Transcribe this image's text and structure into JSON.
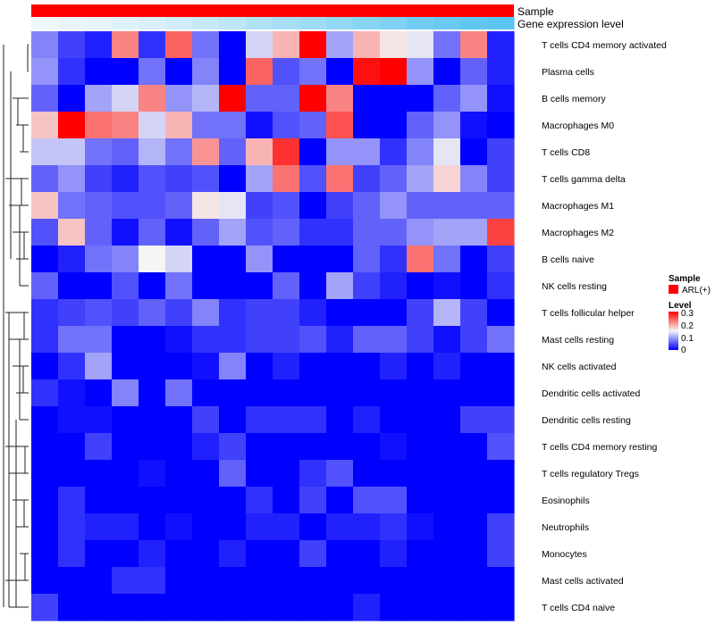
{
  "chart_data": {
    "type": "heatmap",
    "annotation_tracks": [
      {
        "name": "Sample",
        "label": "Sample",
        "color": "#ff0000"
      },
      {
        "name": "Gene expression level",
        "label": "Gene expression level",
        "values": [
          0.02,
          0.05,
          0.08,
          0.12,
          0.16,
          0.22,
          0.28,
          0.34,
          0.42,
          0.48,
          0.54,
          0.62,
          0.68,
          0.74,
          0.82,
          0.88,
          0.94,
          0.99
        ]
      }
    ],
    "rows": [
      "T cells CD4 memory activated",
      "Plasma cells",
      "B cells memory",
      "Macrophages M0",
      "T cells CD8",
      "T cells gamma delta",
      "Macrophages M1",
      "Macrophages M2",
      "B cells naive",
      "NK cells resting",
      "T cells follicular helper",
      "Mast cells resting",
      "NK cells activated",
      "Dendritic cells activated",
      "Dendritic cells resting",
      "T cells CD4 memory resting",
      "T cells regulatory  Tregs",
      "Eosinophils",
      "Neutrophils",
      "Monocytes",
      "Mast cells activated",
      "T cells CD4 naive"
    ],
    "n_columns": 18,
    "values": [
      [
        0.08,
        0.04,
        0.02,
        0.22,
        0.03,
        0.24,
        0.07,
        0.0,
        0.13,
        0.19,
        0.3,
        0.1,
        0.19,
        0.16,
        0.14,
        0.07,
        0.22,
        0.02
      ],
      [
        0.09,
        0.03,
        0.0,
        0.0,
        0.07,
        0.0,
        0.08,
        0.0,
        0.24,
        0.05,
        0.07,
        0.0,
        0.29,
        0.3,
        0.09,
        0.0,
        0.06,
        0.02
      ],
      [
        0.06,
        0.0,
        0.1,
        0.13,
        0.22,
        0.09,
        0.11,
        0.3,
        0.06,
        0.06,
        0.3,
        0.22,
        0.0,
        0.0,
        0.0,
        0.06,
        0.09,
        0.01
      ],
      [
        0.18,
        0.3,
        0.23,
        0.22,
        0.13,
        0.19,
        0.07,
        0.07,
        0.01,
        0.05,
        0.06,
        0.25,
        0.0,
        0.0,
        0.06,
        0.09,
        0.01,
        0.0
      ],
      [
        0.12,
        0.12,
        0.07,
        0.06,
        0.11,
        0.07,
        0.21,
        0.06,
        0.19,
        0.27,
        0.0,
        0.09,
        0.09,
        0.03,
        0.08,
        0.14,
        0.0,
        0.04
      ],
      [
        0.06,
        0.09,
        0.04,
        0.02,
        0.05,
        0.04,
        0.05,
        0.0,
        0.1,
        0.23,
        0.05,
        0.23,
        0.04,
        0.06,
        0.1,
        0.17,
        0.08,
        0.04
      ],
      [
        0.18,
        0.07,
        0.06,
        0.05,
        0.05,
        0.06,
        0.16,
        0.14,
        0.04,
        0.05,
        0.0,
        0.04,
        0.06,
        0.09,
        0.06,
        0.06,
        0.06,
        0.06
      ],
      [
        0.05,
        0.18,
        0.06,
        0.01,
        0.06,
        0.01,
        0.06,
        0.1,
        0.05,
        0.06,
        0.03,
        0.03,
        0.06,
        0.06,
        0.09,
        0.1,
        0.1,
        0.26
      ],
      [
        0.0,
        0.02,
        0.07,
        0.08,
        0.15,
        0.13,
        0.0,
        0.0,
        0.09,
        0.0,
        0.0,
        0.0,
        0.06,
        0.03,
        0.23,
        0.07,
        0.0,
        0.04
      ],
      [
        0.06,
        0.0,
        0.0,
        0.05,
        0.0,
        0.07,
        0.0,
        0.0,
        0.0,
        0.06,
        0.0,
        0.1,
        0.04,
        0.02,
        0.0,
        0.01,
        0.0,
        0.03
      ],
      [
        0.03,
        0.04,
        0.05,
        0.04,
        0.06,
        0.04,
        0.08,
        0.03,
        0.04,
        0.04,
        0.02,
        0.0,
        0.0,
        0.0,
        0.04,
        0.11,
        0.04,
        0.0
      ],
      [
        0.03,
        0.07,
        0.07,
        0.0,
        0.0,
        0.01,
        0.03,
        0.03,
        0.04,
        0.04,
        0.05,
        0.02,
        0.06,
        0.06,
        0.04,
        0.01,
        0.04,
        0.07
      ],
      [
        0.0,
        0.03,
        0.1,
        0.0,
        0.0,
        0.0,
        0.01,
        0.08,
        0.0,
        0.02,
        0.0,
        0.0,
        0.0,
        0.02,
        0.0,
        0.02,
        0.0,
        0.0
      ],
      [
        0.03,
        0.01,
        0.0,
        0.08,
        0.0,
        0.07,
        0.0,
        0.0,
        0.0,
        0.0,
        0.0,
        0.0,
        0.0,
        0.0,
        0.0,
        0.0,
        0.0,
        0.0
      ],
      [
        0.0,
        0.01,
        0.01,
        0.0,
        0.0,
        0.0,
        0.04,
        0.0,
        0.03,
        0.03,
        0.03,
        0.0,
        0.02,
        0.0,
        0.0,
        0.0,
        0.04,
        0.04
      ],
      [
        0.0,
        0.0,
        0.04,
        0.0,
        0.0,
        0.0,
        0.02,
        0.04,
        0.0,
        0.0,
        0.0,
        0.0,
        0.0,
        0.01,
        0.0,
        0.0,
        0.0,
        0.05
      ],
      [
        0.0,
        0.0,
        0.0,
        0.0,
        0.01,
        0.0,
        0.0,
        0.06,
        0.0,
        0.0,
        0.03,
        0.05,
        0.0,
        0.0,
        0.0,
        0.0,
        0.0,
        0.0
      ],
      [
        0.0,
        0.03,
        0.0,
        0.0,
        0.0,
        0.0,
        0.0,
        0.0,
        0.03,
        0.0,
        0.04,
        0.0,
        0.05,
        0.05,
        0.0,
        0.0,
        0.0,
        0.0
      ],
      [
        0.0,
        0.03,
        0.02,
        0.02,
        0.0,
        0.01,
        0.0,
        0.0,
        0.02,
        0.02,
        0.0,
        0.02,
        0.02,
        0.03,
        0.01,
        0.0,
        0.0,
        0.04
      ],
      [
        0.0,
        0.03,
        0.0,
        0.0,
        0.02,
        0.0,
        0.0,
        0.02,
        0.0,
        0.0,
        0.04,
        0.0,
        0.0,
        0.02,
        0.0,
        0.0,
        0.0,
        0.04
      ],
      [
        0.0,
        0.0,
        0.0,
        0.03,
        0.03,
        0.0,
        0.0,
        0.0,
        0.0,
        0.0,
        0.0,
        0.0,
        0.0,
        0.0,
        0.0,
        0.0,
        0.0,
        0.0
      ],
      [
        0.04,
        0.0,
        0.0,
        0.0,
        0.0,
        0.0,
        0.0,
        0.0,
        0.0,
        0.0,
        0.0,
        0.0,
        0.02,
        0.0,
        0.0,
        0.0,
        0.0,
        0.0
      ]
    ],
    "color_scale": {
      "min": 0,
      "mid": 0.15,
      "max": 0.3,
      "low_color": "#0000ff",
      "mid_color": "#f5f5f5",
      "high_color": "#ff0000"
    },
    "legend": {
      "sample": {
        "title": "Sample",
        "entry": "ARL(+)",
        "color": "#ff0000"
      },
      "level": {
        "title": "Level",
        "ticks": [
          "0.3",
          "0.2",
          "0.1",
          "0"
        ],
        "tick_values": [
          0.3,
          0.2,
          0.1,
          0
        ]
      }
    },
    "anno_gradient": {
      "low_color": "#f2f8fc",
      "high_color": "#57c4f0"
    },
    "row_dendrogram": true
  }
}
